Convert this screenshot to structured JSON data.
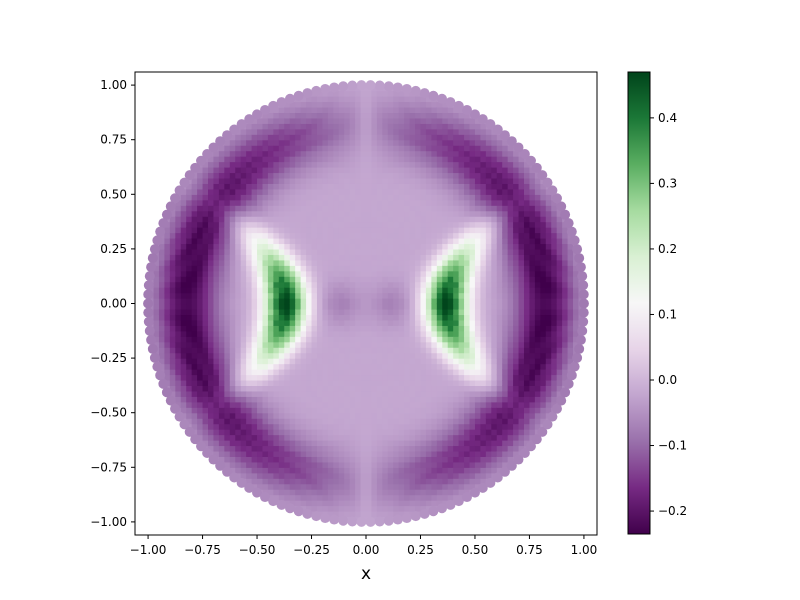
{
  "chart_data": {
    "type": "heatmap",
    "description_kind": "disk-shaped 2D scalar field with radial-petal texture",
    "xlabel": "x",
    "ylabel": "",
    "title": "",
    "xlim": [
      -1.06,
      1.06
    ],
    "ylim": [
      -1.06,
      1.06
    ],
    "grid": false,
    "x_ticks": [
      -1.0,
      -0.75,
      -0.5,
      -0.25,
      0.0,
      0.25,
      0.5,
      0.75,
      1.0
    ],
    "x_tick_labels": [
      "−1.00",
      "−0.75",
      "−0.50",
      "−0.25",
      "0.00",
      "0.25",
      "0.50",
      "0.75",
      "1.00"
    ],
    "y_ticks": [
      1.0,
      0.75,
      0.5,
      0.25,
      0.0,
      -0.25,
      -0.5,
      -0.75,
      -1.0
    ],
    "y_tick_labels": [
      "1.00",
      "0.75",
      "0.50",
      "0.25",
      "0.00",
      "−0.25",
      "−0.50",
      "−0.75",
      "−1.00"
    ],
    "domain_radius": 1.0,
    "colormap": "PRGn",
    "colorbar": {
      "min": -0.235,
      "max": 0.47,
      "ticks": [
        0.4,
        0.3,
        0.2,
        0.1,
        0.0,
        -0.1,
        -0.2
      ],
      "tick_labels": [
        "0.4",
        "0.3",
        "0.2",
        "0.1",
        "0.0",
        "−0.1",
        "−0.2"
      ],
      "placement": "right"
    },
    "field_features": [
      {
        "kind": "positive-lobe",
        "x_center": -0.37,
        "y_center": 0.0,
        "peak": 0.47
      },
      {
        "kind": "positive-lobe",
        "x_center": 0.37,
        "y_center": 0.0,
        "peak": 0.47
      },
      {
        "kind": "negative-ring",
        "radius": 0.82,
        "value": -0.23
      },
      {
        "kind": "weak-negative-center",
        "x_center": -0.12,
        "y_center": 0.0,
        "value": -0.07
      },
      {
        "kind": "weak-negative-center",
        "x_center": 0.12,
        "y_center": 0.0,
        "value": -0.07
      },
      {
        "kind": "background",
        "value": -0.02
      }
    ]
  }
}
